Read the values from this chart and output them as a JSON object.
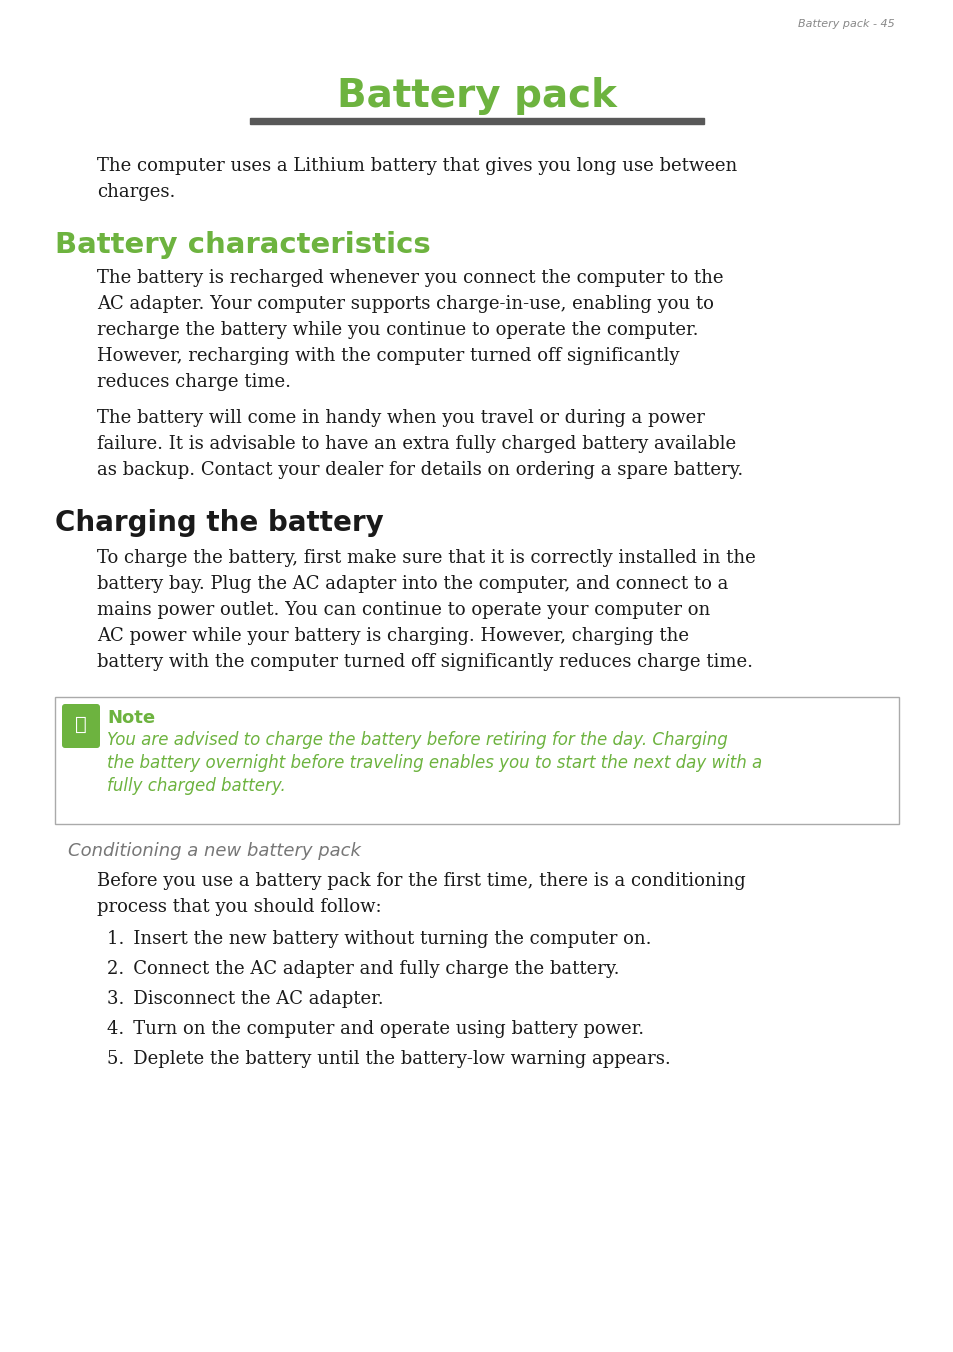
{
  "page_header": "Battery pack - 45",
  "main_title_B": "B",
  "main_title_rest": "ATTERY ",
  "main_title_P": "P",
  "main_title_ack": "ACK",
  "title_color": "#6db33f",
  "title_underline_color": "#585858",
  "section1_title": "Battery characteristics",
  "section1_color": "#6db33f",
  "section2_title": "Charging the battery",
  "body_color": "#1a1a1a",
  "header_color": "#888888",
  "green_color": "#6db33f",
  "note_title": "Note",
  "conditioning_title": "Conditioning a new battery pack",
  "background_color": "#ffffff",
  "intro_lines": [
    "The computer uses a Lithium battery that gives you long use between",
    "charges."
  ],
  "para1_lines": [
    "The battery is recharged whenever you connect the computer to the",
    "AC adapter. Your computer supports charge-in-use, enabling you to",
    "recharge the battery while you continue to operate the computer.",
    "However, recharging with the computer turned off significantly",
    "reduces charge time."
  ],
  "para2_lines": [
    "The battery will come in handy when you travel or during a power",
    "failure. It is advisable to have an extra fully charged battery available",
    "as backup. Contact your dealer for details on ordering a spare battery."
  ],
  "charging_lines": [
    "To charge the battery, first make sure that it is correctly installed in the",
    "battery bay. Plug the AC adapter into the computer, and connect to a",
    "mains power outlet. You can continue to operate your computer on",
    "AC power while your battery is charging. However, charging the",
    "battery with the computer turned off significantly reduces charge time."
  ],
  "note_lines": [
    "You are advised to charge the battery before retiring for the day. Charging",
    "the battery overnight before traveling enables you to start the next day with a",
    "fully charged battery."
  ],
  "cond_intro_lines": [
    "Before you use a battery pack for the first time, there is a conditioning",
    "process that you should follow:"
  ],
  "list_items": [
    "Insert the new battery without turning the computer on.",
    "Connect the AC adapter and fully charge the battery.",
    "Disconnect the AC adapter.",
    "Turn on the computer and operate using battery power.",
    "Deplete the battery until the battery-low warning appears."
  ]
}
